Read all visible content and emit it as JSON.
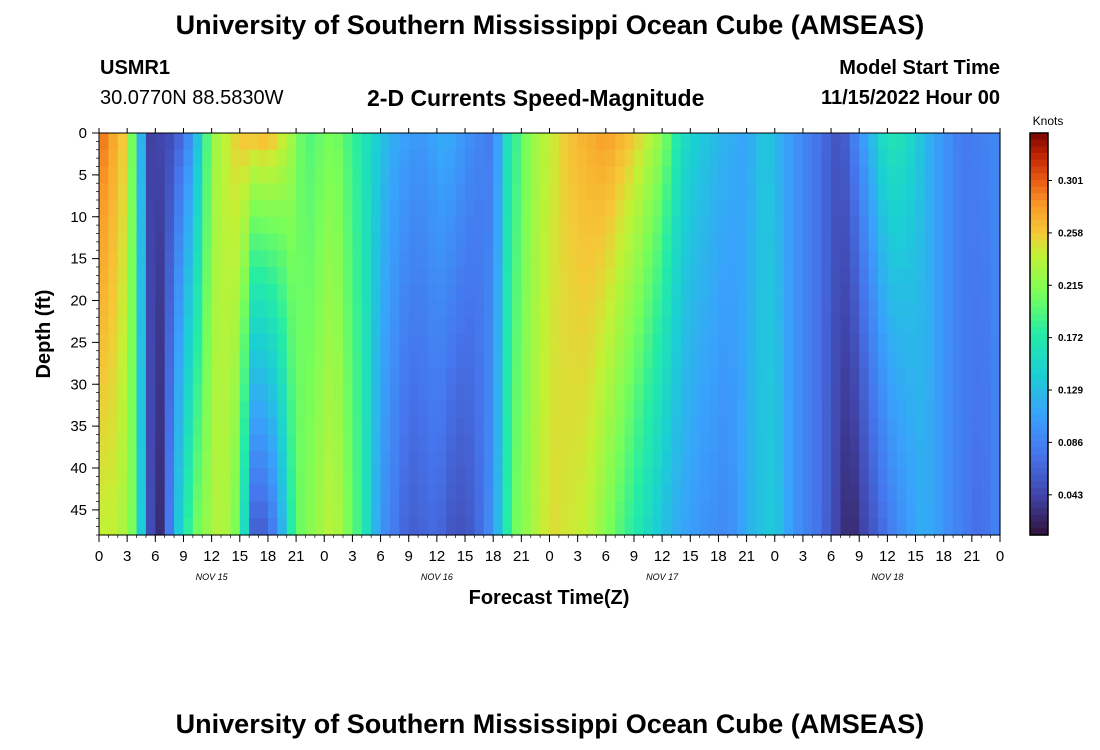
{
  "header": {
    "title": "University of Southern Mississippi Ocean Cube (AMSEAS)",
    "station_id": "USMR1",
    "coordinates": "30.0770N  88.5830W",
    "subtitle": "2-D Currents Speed-Magnitude",
    "model_start_label": "Model Start Time",
    "model_start_value": "11/15/2022 Hour 00"
  },
  "footer": {
    "repeated_title": "University of Southern Mississippi Ocean Cube (AMSEAS)"
  },
  "chart_data": {
    "type": "heatmap",
    "title": "2-D Currents Speed-Magnitude",
    "xlabel": "Forecast Time(Z)",
    "ylabel": "Depth (ft)",
    "x_range_hours": [
      0,
      96
    ],
    "x_tick_step_hours": 3,
    "x_tick_labels": [
      "0",
      "3",
      "6",
      "9",
      "12",
      "15",
      "18",
      "21",
      "0",
      "3",
      "6",
      "9",
      "12",
      "15",
      "18",
      "21",
      "0",
      "3",
      "6",
      "9",
      "12",
      "15",
      "18",
      "21",
      "0",
      "3",
      "6",
      "9",
      "12",
      "15",
      "18",
      "21",
      "0"
    ],
    "day_labels": [
      {
        "label": "NOV 15",
        "hour": 12
      },
      {
        "label": "NOV 16",
        "hour": 36
      },
      {
        "label": "NOV 17",
        "hour": 60
      },
      {
        "label": "NOV 18",
        "hour": 84
      }
    ],
    "y_range_ft": [
      0,
      48
    ],
    "y_ticks": [
      "0",
      "5",
      "10",
      "15",
      "20",
      "25",
      "30",
      "35",
      "40",
      "45"
    ],
    "colorbar": {
      "label": "Knots",
      "min": 0.01,
      "max": 0.34,
      "ticks": [
        "0.301",
        "0.258",
        "0.215",
        "0.172",
        "0.129",
        "0.086",
        "0.043"
      ]
    },
    "surface_profile": [
      {
        "hour": 0,
        "speed": 0.3
      },
      {
        "hour": 3,
        "speed": 0.25
      },
      {
        "hour": 4.5,
        "speed": 0.12
      },
      {
        "hour": 5.5,
        "speed": 0.04
      },
      {
        "hour": 8,
        "speed": 0.05
      },
      {
        "hour": 10,
        "speed": 0.1
      },
      {
        "hour": 12,
        "speed": 0.22
      },
      {
        "hour": 15,
        "speed": 0.26
      },
      {
        "hour": 18,
        "speed": 0.27
      },
      {
        "hour": 20,
        "speed": 0.24
      },
      {
        "hour": 22,
        "speed": 0.19
      },
      {
        "hour": 25,
        "speed": 0.21
      },
      {
        "hour": 28,
        "speed": 0.17
      },
      {
        "hour": 31,
        "speed": 0.12
      },
      {
        "hour": 34,
        "speed": 0.1
      },
      {
        "hour": 37,
        "speed": 0.12
      },
      {
        "hour": 40,
        "speed": 0.09
      },
      {
        "hour": 42,
        "speed": 0.08
      },
      {
        "hour": 43.5,
        "speed": 0.16
      },
      {
        "hour": 46,
        "speed": 0.22
      },
      {
        "hour": 50,
        "speed": 0.26
      },
      {
        "hour": 54,
        "speed": 0.28
      },
      {
        "hour": 57,
        "speed": 0.26
      },
      {
        "hour": 60,
        "speed": 0.22
      },
      {
        "hour": 62,
        "speed": 0.16
      },
      {
        "hour": 64,
        "speed": 0.14
      },
      {
        "hour": 67,
        "speed": 0.12
      },
      {
        "hour": 69,
        "speed": 0.11
      },
      {
        "hour": 71,
        "speed": 0.14
      },
      {
        "hour": 73,
        "speed": 0.11
      },
      {
        "hour": 76,
        "speed": 0.08
      },
      {
        "hour": 79,
        "speed": 0.05
      },
      {
        "hour": 82,
        "speed": 0.12
      },
      {
        "hour": 84,
        "speed": 0.17
      },
      {
        "hour": 86,
        "speed": 0.16
      },
      {
        "hour": 89,
        "speed": 0.11
      },
      {
        "hour": 92,
        "speed": 0.08
      },
      {
        "hour": 96,
        "speed": 0.09
      }
    ],
    "bottom_profile": [
      {
        "hour": 0,
        "speed": 0.24
      },
      {
        "hour": 2,
        "speed": 0.24
      },
      {
        "hour": 4,
        "speed": 0.2
      },
      {
        "hour": 5,
        "speed": 0.08
      },
      {
        "hour": 6,
        "speed": 0.015
      },
      {
        "hour": 7,
        "speed": 0.04
      },
      {
        "hour": 8,
        "speed": 0.12
      },
      {
        "hour": 10,
        "speed": 0.2
      },
      {
        "hour": 13,
        "speed": 0.24
      },
      {
        "hour": 15,
        "speed": 0.2
      },
      {
        "hour": 16.5,
        "speed": 0.06
      },
      {
        "hour": 18,
        "speed": 0.06
      },
      {
        "hour": 19.5,
        "speed": 0.12
      },
      {
        "hour": 21,
        "speed": 0.2
      },
      {
        "hour": 25,
        "speed": 0.24
      },
      {
        "hour": 28,
        "speed": 0.18
      },
      {
        "hour": 30,
        "speed": 0.1
      },
      {
        "hour": 33,
        "speed": 0.06
      },
      {
        "hour": 36,
        "speed": 0.07
      },
      {
        "hour": 38,
        "speed": 0.05
      },
      {
        "hour": 40,
        "speed": 0.06
      },
      {
        "hour": 42,
        "speed": 0.1
      },
      {
        "hour": 44,
        "speed": 0.2
      },
      {
        "hour": 48,
        "speed": 0.25
      },
      {
        "hour": 52,
        "speed": 0.24
      },
      {
        "hour": 55,
        "speed": 0.2
      },
      {
        "hour": 58,
        "speed": 0.16
      },
      {
        "hour": 61,
        "speed": 0.12
      },
      {
        "hour": 64,
        "speed": 0.1
      },
      {
        "hour": 67,
        "speed": 0.09
      },
      {
        "hour": 70,
        "speed": 0.13
      },
      {
        "hour": 72,
        "speed": 0.14
      },
      {
        "hour": 74,
        "speed": 0.1
      },
      {
        "hour": 77,
        "speed": 0.07
      },
      {
        "hour": 80,
        "speed": 0.02
      },
      {
        "hour": 82,
        "speed": 0.05
      },
      {
        "hour": 85,
        "speed": 0.09
      },
      {
        "hour": 88,
        "speed": 0.12
      },
      {
        "hour": 91,
        "speed": 0.09
      },
      {
        "hour": 94,
        "speed": 0.07
      },
      {
        "hour": 96,
        "speed": 0.09
      }
    ]
  }
}
